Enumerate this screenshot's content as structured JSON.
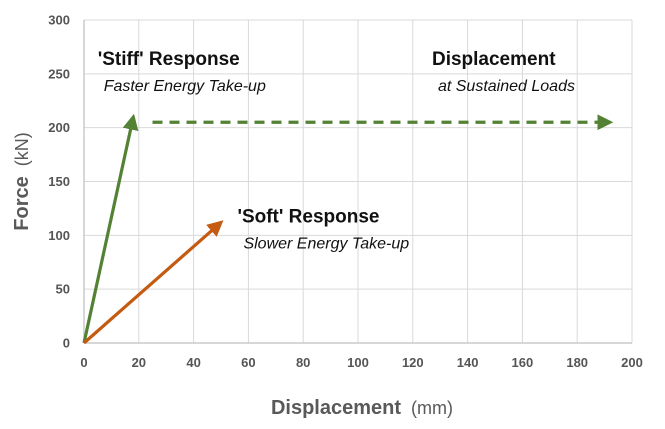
{
  "chart_data": {
    "type": "line",
    "xlabel": "Displacement",
    "xlabel_unit": "(mm)",
    "ylabel": "Force",
    "ylabel_unit": "(kN)",
    "xlim": [
      0,
      200
    ],
    "ylim": [
      0,
      300
    ],
    "x_ticks": [
      0,
      20,
      40,
      60,
      80,
      100,
      120,
      140,
      160,
      180,
      200
    ],
    "y_ticks": [
      0,
      50,
      100,
      150,
      200,
      250,
      300
    ],
    "grid": true,
    "colors": {
      "stiff": "#548235",
      "soft": "#C55A11",
      "grid": "#D9D9D9",
      "axis": "#BFBFBF"
    },
    "series": [
      {
        "key": "stiff",
        "style": "solid-arrow",
        "color": "#548235",
        "points": [
          {
            "x": 0,
            "y": 0
          },
          {
            "x": 18,
            "y": 210
          }
        ]
      },
      {
        "key": "soft",
        "style": "solid-arrow",
        "color": "#C55A11",
        "points": [
          {
            "x": 0,
            "y": 0
          },
          {
            "x": 50,
            "y": 112
          }
        ]
      },
      {
        "key": "sustained",
        "style": "dashed-arrow",
        "color": "#548235",
        "points": [
          {
            "x": 25,
            "y": 205
          },
          {
            "x": 192,
            "y": 205
          }
        ]
      }
    ],
    "annotations": [
      {
        "key": "stiff",
        "title": "'Stiff' Response",
        "subtitle": "Faster Energy Take-up",
        "x": 5,
        "y": 258
      },
      {
        "key": "sustained",
        "title": "Displacement",
        "subtitle": "at Sustained Loads",
        "x": 127,
        "y": 258
      },
      {
        "key": "soft",
        "title": "'Soft' Response",
        "subtitle": "Slower Energy Take-up",
        "x": 56,
        "y": 112
      }
    ]
  }
}
